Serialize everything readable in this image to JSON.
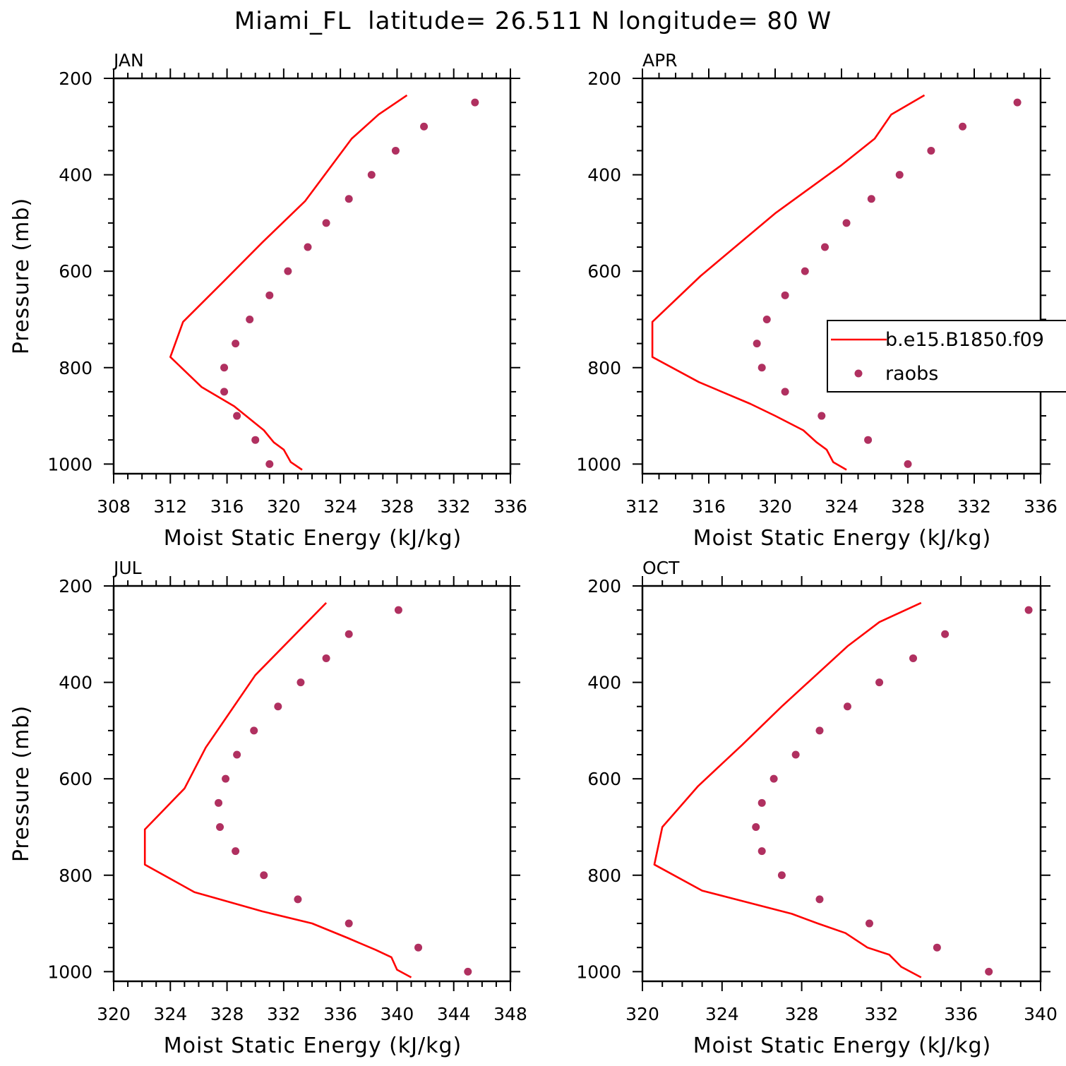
{
  "title": "Miami_FL  latitude= 26.511 N longitude= 80 W",
  "colors": {
    "model": "#ff0000",
    "obs": "#b03060",
    "axes": "#000000"
  },
  "legend": {
    "position": "top-right of APR panel",
    "entries": [
      {
        "label": "b.e15.B1850.f09",
        "style": "line",
        "color": "#ff0000"
      },
      {
        "label": "raobs",
        "style": "marker",
        "color": "#b03060"
      }
    ]
  },
  "chart_data": [
    {
      "type": "line",
      "panel": "JAN",
      "xlabel": "Moist Static Energy (kJ/kg)",
      "ylabel": "Pressure (mb)",
      "xlim": [
        308,
        336
      ],
      "ylim": [
        1020,
        200
      ],
      "x_ticks": [
        308,
        312,
        316,
        320,
        324,
        328,
        332,
        336
      ],
      "y_ticks": [
        200,
        400,
        600,
        800,
        1000
      ],
      "series": [
        {
          "name": "b.e15.B1850.f09",
          "style": "line",
          "x": [
            321.3,
            320.5,
            320.0,
            319.3,
            318.6,
            316.5,
            314.2,
            312.0,
            312.9,
            315.8,
            318.5,
            321.5,
            324.8,
            326.7,
            328.7
          ],
          "y": [
            1012,
            996,
            970,
            955,
            930,
            880,
            840,
            778,
            705,
            620,
            540,
            455,
            325,
            275,
            235
          ]
        },
        {
          "name": "raobs",
          "style": "marker",
          "x": [
            319.0,
            318.0,
            316.7,
            315.8,
            315.8,
            316.6,
            317.6,
            319.0,
            320.3,
            321.7,
            323.0,
            324.6,
            326.2,
            327.9,
            329.9,
            333.5
          ],
          "y": [
            1000,
            950,
            900,
            850,
            800,
            750,
            700,
            650,
            600,
            550,
            500,
            450,
            400,
            350,
            300,
            250
          ]
        }
      ]
    },
    {
      "type": "line",
      "panel": "APR",
      "xlabel": "Moist Static Energy (kJ/kg)",
      "ylabel": "",
      "xlim": [
        312,
        336
      ],
      "ylim": [
        1020,
        200
      ],
      "x_ticks": [
        312,
        316,
        320,
        324,
        328,
        332,
        336
      ],
      "y_ticks": [
        200,
        400,
        600,
        800,
        1000
      ],
      "series": [
        {
          "name": "b.e15.B1850.f09",
          "style": "line",
          "x": [
            324.3,
            323.5,
            323.1,
            322.5,
            321.7,
            320.0,
            318.5,
            315.4,
            312.6,
            312.6,
            315.5,
            320.0,
            324.0,
            326.0,
            327.0,
            329.0
          ],
          "y": [
            1012,
            996,
            970,
            955,
            930,
            900,
            875,
            830,
            778,
            705,
            610,
            480,
            380,
            325,
            275,
            235
          ]
        },
        {
          "name": "raobs",
          "style": "marker",
          "x": [
            328.0,
            325.6,
            322.8,
            320.6,
            319.2,
            318.9,
            319.5,
            320.6,
            321.8,
            323.0,
            324.3,
            325.8,
            327.5,
            329.4,
            331.3,
            334.6
          ],
          "y": [
            1000,
            950,
            900,
            850,
            800,
            750,
            700,
            650,
            600,
            550,
            500,
            450,
            400,
            350,
            300,
            250
          ]
        }
      ]
    },
    {
      "type": "line",
      "panel": "JUL",
      "xlabel": "Moist Static Energy (kJ/kg)",
      "ylabel": "Pressure (mb)",
      "xlim": [
        320,
        348
      ],
      "ylim": [
        1020,
        200
      ],
      "x_ticks": [
        320,
        324,
        328,
        332,
        336,
        340,
        344,
        348
      ],
      "y_ticks": [
        200,
        400,
        600,
        800,
        1000
      ],
      "series": [
        {
          "name": "b.e15.B1850.f09",
          "style": "line",
          "x": [
            341.0,
            340.0,
            339.6,
            338.5,
            336.5,
            334.0,
            330.5,
            325.7,
            322.2,
            322.2,
            325.0,
            326.5,
            330.0,
            335.0
          ],
          "y": [
            1012,
            996,
            970,
            955,
            930,
            900,
            875,
            835,
            778,
            705,
            620,
            535,
            385,
            235
          ]
        },
        {
          "name": "raobs",
          "style": "marker",
          "x": [
            345.0,
            341.5,
            336.6,
            333.0,
            330.6,
            328.6,
            327.5,
            327.4,
            327.9,
            328.7,
            329.9,
            331.6,
            333.2,
            335.0,
            336.6,
            340.1
          ],
          "y": [
            1000,
            950,
            900,
            850,
            800,
            750,
            700,
            650,
            600,
            550,
            500,
            450,
            400,
            350,
            300,
            250
          ]
        }
      ]
    },
    {
      "type": "line",
      "panel": "OCT",
      "xlabel": "Moist Static Energy (kJ/kg)",
      "ylabel": "",
      "xlim": [
        320,
        340
      ],
      "ylim": [
        1020,
        200
      ],
      "x_ticks": [
        320,
        324,
        328,
        332,
        336,
        340
      ],
      "y_ticks": [
        200,
        400,
        600,
        800,
        1000
      ],
      "series": [
        {
          "name": "b.e15.B1850.f09",
          "style": "line",
          "x": [
            334.0,
            333.0,
            332.4,
            331.3,
            330.2,
            328.8,
            327.5,
            323.0,
            320.6,
            321.0,
            322.8,
            325.0,
            327.0,
            330.3,
            331.9,
            334.0
          ],
          "y": [
            1012,
            990,
            965,
            950,
            920,
            900,
            880,
            832,
            778,
            700,
            615,
            530,
            450,
            325,
            275,
            235
          ]
        },
        {
          "name": "raobs",
          "style": "marker",
          "x": [
            337.4,
            334.8,
            331.4,
            328.9,
            327.0,
            326.0,
            325.7,
            326.0,
            326.6,
            327.7,
            328.9,
            330.3,
            331.9,
            333.6,
            335.2,
            339.4
          ],
          "y": [
            1000,
            950,
            900,
            850,
            800,
            750,
            700,
            650,
            600,
            550,
            500,
            450,
            400,
            350,
            300,
            250
          ]
        }
      ]
    }
  ]
}
